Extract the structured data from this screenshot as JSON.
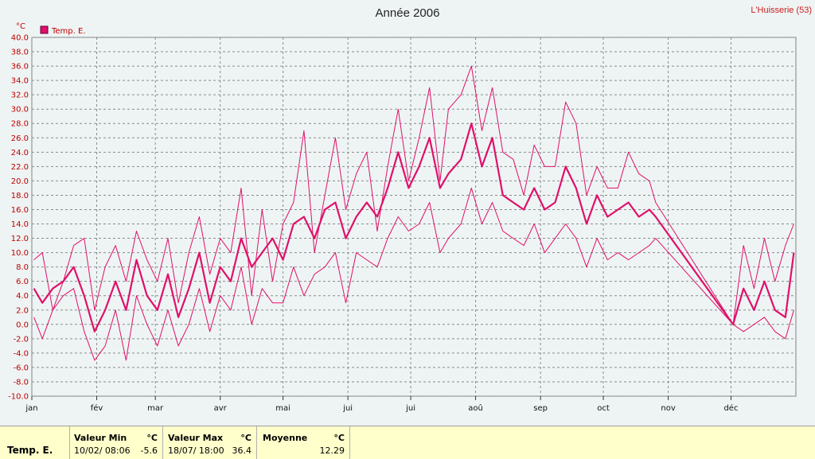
{
  "header": {
    "title": "Année 2006",
    "location": "L'Huisserie (53)"
  },
  "chart_data": {
    "type": "line",
    "title": "Année 2006",
    "ylabel": "°C",
    "ylim": [
      -10,
      40
    ],
    "ytick_step": 2,
    "yticks": [
      "40.0",
      "38.0",
      "36.0",
      "34.0",
      "32.0",
      "30.0",
      "28.0",
      "26.0",
      "24.0",
      "22.0",
      "20.0",
      "18.0",
      "16.0",
      "14.0",
      "12.0",
      "10.0",
      "8.0",
      "6.0",
      "4.0",
      "2.0",
      "0.0",
      "-2.0",
      "-4.0",
      "-6.0",
      "-8.0",
      "-10.0"
    ],
    "months": [
      "jan",
      "fév",
      "mar",
      "avr",
      "mai",
      "jui",
      "jui",
      "aoû",
      "sep",
      "oct",
      "nov",
      "déc"
    ],
    "grid": true,
    "legend": {
      "label": "Temp. E.",
      "color": "#e0106a",
      "position": "top-left"
    },
    "series": [
      {
        "name": "Temp. E.",
        "role": "max",
        "x": [
          1,
          5,
          10,
          15,
          20,
          25,
          30,
          35,
          40,
          45,
          50,
          55,
          60,
          65,
          70,
          75,
          80,
          85,
          90,
          95,
          100,
          105,
          110,
          115,
          120,
          125,
          130,
          135,
          140,
          145,
          150,
          155,
          160,
          165,
          170,
          175,
          180,
          185,
          190,
          195,
          199,
          205,
          210,
          215,
          220,
          225,
          230,
          235,
          240,
          245,
          250,
          255,
          260,
          265,
          270,
          275,
          280,
          285,
          290,
          295,
          298,
          335,
          340,
          345,
          350,
          355,
          360,
          364
        ],
        "values": [
          9,
          10,
          2,
          6,
          11,
          12,
          2,
          8,
          11,
          6,
          13,
          9,
          6,
          12,
          3,
          10,
          15,
          7,
          12,
          10,
          19,
          4,
          16,
          6,
          14,
          17,
          27,
          10,
          18,
          26,
          16,
          21,
          24,
          13,
          22,
          30,
          20,
          26,
          33,
          20,
          30,
          32,
          36,
          27,
          33,
          24,
          23,
          18,
          25,
          22,
          22,
          31,
          28,
          18,
          22,
          19,
          19,
          24,
          21,
          20,
          17,
          0,
          11,
          5,
          12,
          6,
          11,
          14
        ]
      },
      {
        "name": "Temp. E.",
        "role": "mean",
        "x": [
          1,
          5,
          10,
          15,
          20,
          25,
          30,
          35,
          40,
          45,
          50,
          55,
          60,
          65,
          70,
          75,
          80,
          85,
          90,
          95,
          100,
          105,
          110,
          115,
          120,
          125,
          130,
          135,
          140,
          145,
          150,
          155,
          160,
          165,
          170,
          175,
          180,
          185,
          190,
          195,
          199,
          205,
          210,
          215,
          220,
          225,
          230,
          235,
          240,
          245,
          250,
          255,
          260,
          265,
          270,
          275,
          280,
          285,
          290,
          295,
          298,
          335,
          340,
          345,
          350,
          355,
          360,
          364
        ],
        "values": [
          5,
          3,
          5,
          6,
          8,
          4,
          -1,
          2,
          6,
          2,
          9,
          4,
          2,
          7,
          1,
          5,
          10,
          3,
          8,
          6,
          12,
          8,
          10,
          12,
          9,
          14,
          15,
          12,
          16,
          17,
          12,
          15,
          17,
          15,
          19,
          24,
          19,
          22,
          26,
          19,
          21,
          23,
          28,
          22,
          26,
          18,
          17,
          16,
          19,
          16,
          17,
          22,
          19,
          14,
          18,
          15,
          16,
          17,
          15,
          16,
          15,
          0,
          5,
          2,
          6,
          2,
          1,
          10
        ]
      },
      {
        "name": "Temp. E.",
        "role": "min",
        "x": [
          1,
          5,
          10,
          15,
          20,
          25,
          30,
          35,
          40,
          45,
          50,
          55,
          60,
          65,
          70,
          75,
          80,
          85,
          90,
          95,
          100,
          105,
          110,
          115,
          120,
          125,
          130,
          135,
          140,
          145,
          150,
          155,
          160,
          165,
          170,
          175,
          180,
          185,
          190,
          195,
          199,
          205,
          210,
          215,
          220,
          225,
          230,
          235,
          240,
          245,
          250,
          255,
          260,
          265,
          270,
          275,
          280,
          285,
          290,
          295,
          298,
          335,
          340,
          345,
          350,
          355,
          360,
          364
        ],
        "values": [
          1,
          -2,
          2,
          4,
          5,
          -1,
          -5,
          -3,
          2,
          -5,
          4,
          0,
          -3,
          2,
          -3,
          0,
          5,
          -1,
          4,
          2,
          8,
          0,
          5,
          3,
          3,
          8,
          4,
          7,
          8,
          10,
          3,
          10,
          9,
          8,
          12,
          15,
          13,
          14,
          17,
          10,
          12,
          14,
          19,
          14,
          17,
          13,
          12,
          11,
          14,
          10,
          12,
          14,
          12,
          8,
          12,
          9,
          10,
          9,
          10,
          11,
          12,
          0,
          -1,
          0,
          1,
          -1,
          -2,
          2
        ]
      }
    ]
  },
  "stats": {
    "series_label": "Temp. E.",
    "min": {
      "header": "Valeur Min",
      "unit": "°C",
      "date": "10/02/  08:06",
      "value": "-5.6"
    },
    "max": {
      "header": "Valeur Max",
      "unit": "°C",
      "date": "18/07/  18:00",
      "value": "36.4"
    },
    "avg": {
      "header": "Moyenne",
      "unit": "°C",
      "value": "12.29"
    }
  }
}
